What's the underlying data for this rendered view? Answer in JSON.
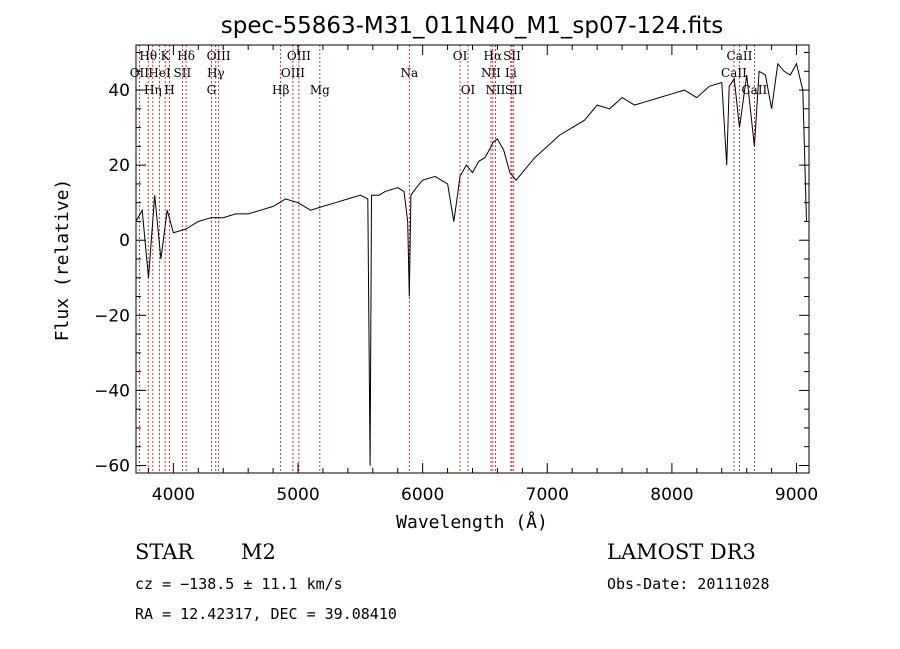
{
  "chart_data": {
    "type": "line",
    "title": "spec-55863-M31_011N40_M1_sp07-124.fits",
    "xlabel": "Wavelength (Å)",
    "ylabel": "Flux (relative)",
    "xlim": [
      3700,
      9100
    ],
    "ylim": [
      -62,
      52
    ],
    "x_ticks": [
      4000,
      5000,
      6000,
      7000,
      8000,
      9000
    ],
    "x_tick_labels": [
      "4000",
      "5000",
      "6000",
      "7000",
      "8000",
      "9000"
    ],
    "y_ticks": [
      -60,
      -40,
      -20,
      0,
      20,
      40
    ],
    "y_tick_labels": [
      "−60",
      "−40",
      "−20",
      "0",
      "20",
      "40"
    ],
    "series": [
      {
        "name": "flux",
        "color": "#000000",
        "x": [
          3700,
          3750,
          3800,
          3850,
          3900,
          3950,
          4000,
          4100,
          4200,
          4300,
          4400,
          4500,
          4600,
          4700,
          4800,
          4900,
          5000,
          5100,
          5200,
          5300,
          5400,
          5500,
          5560,
          5578,
          5590,
          5650,
          5700,
          5800,
          5850,
          5880,
          5893,
          5906,
          5950,
          6000,
          6100,
          6200,
          6250,
          6280,
          6300,
          6350,
          6400,
          6450,
          6500,
          6550,
          6563,
          6600,
          6650,
          6700,
          6750,
          6800,
          6900,
          7000,
          7100,
          7200,
          7300,
          7400,
          7500,
          7600,
          7700,
          7800,
          7900,
          8000,
          8100,
          8200,
          8300,
          8400,
          8440,
          8460,
          8500,
          8542,
          8600,
          8662,
          8700,
          8750,
          8800,
          8850,
          8900,
          8950,
          9000,
          9050,
          9080
        ],
        "y": [
          5,
          8,
          -10,
          12,
          -5,
          8,
          2,
          3,
          5,
          6,
          6,
          7,
          7,
          8,
          9,
          11,
          10,
          8,
          9,
          10,
          11,
          12,
          11,
          -60,
          12,
          12,
          13,
          14,
          13,
          5,
          -15,
          12,
          14,
          16,
          17,
          15,
          5,
          12,
          17,
          20,
          18,
          21,
          22,
          25,
          26,
          27,
          24,
          18,
          16,
          18,
          22,
          25,
          28,
          30,
          32,
          36,
          35,
          38,
          36,
          37,
          38,
          39,
          40,
          38,
          41,
          42,
          20,
          41,
          43,
          30,
          44,
          25,
          45,
          44,
          35,
          47,
          45,
          44,
          47,
          40,
          5
        ]
      }
    ],
    "lines": [
      {
        "name": "Hθ",
        "wavelength": 3798,
        "row": 1
      },
      {
        "name": "OII",
        "wavelength": 3727,
        "row": 2
      },
      {
        "name": "Hη",
        "wavelength": 3835,
        "row": 3
      },
      {
        "name": "K",
        "wavelength": 3934,
        "row": 1
      },
      {
        "name": "HeI",
        "wavelength": 3889,
        "row": 2
      },
      {
        "name": "H",
        "wavelength": 3969,
        "row": 3
      },
      {
        "name": "Hδ",
        "wavelength": 4102,
        "row": 1
      },
      {
        "name": "SII",
        "wavelength": 4072,
        "row": 2
      },
      {
        "name": "OIII",
        "wavelength": 4363,
        "row": 1
      },
      {
        "name": "Hγ",
        "wavelength": 4340,
        "row": 2
      },
      {
        "name": "G",
        "wavelength": 4305,
        "row": 3
      },
      {
        "name": "Hβ",
        "wavelength": 4861,
        "row": 3
      },
      {
        "name": "OIII",
        "wavelength": 5007,
        "row": 1
      },
      {
        "name": "OIII",
        "wavelength": 4959,
        "row": 2
      },
      {
        "name": "Mg",
        "wavelength": 5175,
        "row": 3
      },
      {
        "name": "Na",
        "wavelength": 5893,
        "row": 2
      },
      {
        "name": "OI",
        "wavelength": 6300,
        "row": 1
      },
      {
        "name": "OI",
        "wavelength": 6364,
        "row": 3
      },
      {
        "name": "Hα",
        "wavelength": 6563,
        "row": 1
      },
      {
        "name": "NII",
        "wavelength": 6548,
        "row": 2
      },
      {
        "name": "NII",
        "wavelength": 6584,
        "row": 3
      },
      {
        "name": "SII",
        "wavelength": 6717,
        "row": 1
      },
      {
        "name": "Li",
        "wavelength": 6708,
        "row": 2
      },
      {
        "name": "SII",
        "wavelength": 6731,
        "row": 3
      },
      {
        "name": "CaII",
        "wavelength": 8542,
        "row": 1
      },
      {
        "name": "CaII",
        "wavelength": 8498,
        "row": 2
      },
      {
        "name": "CaII",
        "wavelength": 8662,
        "row": 3
      }
    ]
  },
  "info": {
    "object_class": "STAR",
    "subclass": "M2",
    "survey": "LAMOST DR3",
    "cz": "cz = −138.5 ± 11.1 km/s",
    "obs_date": "Obs-Date: 20111028",
    "coords": "RA =  12.42317, DEC =  39.08410"
  },
  "colors": {
    "line_marker": "#cc0000",
    "spectrum": "#000000",
    "axes": "#000000"
  }
}
